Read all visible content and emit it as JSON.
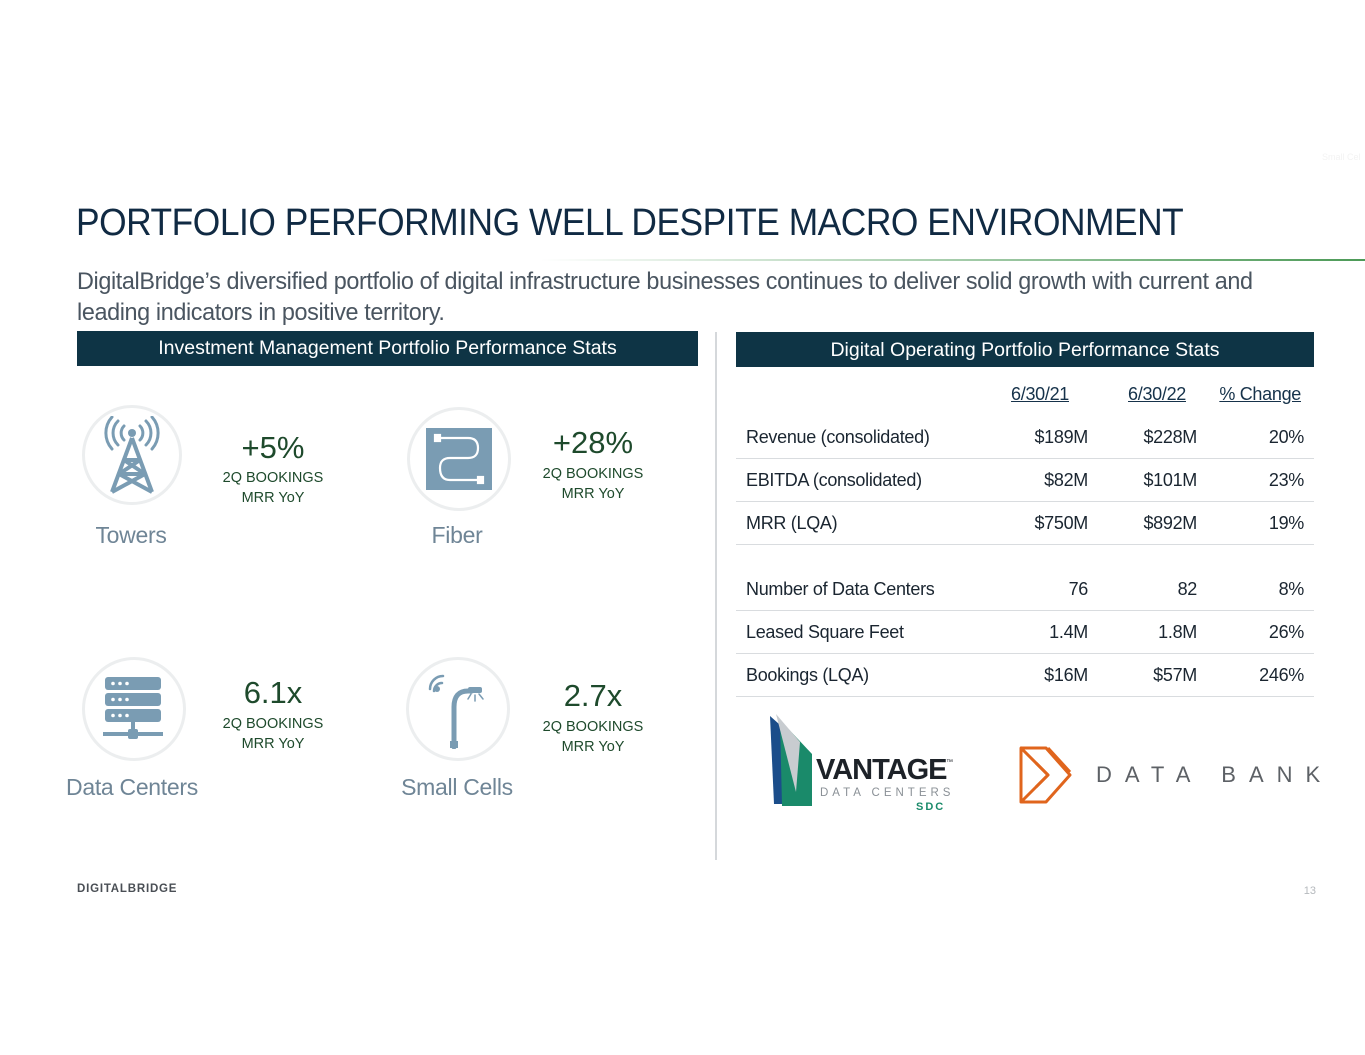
{
  "slide": {
    "ghost_text": "Small Cel",
    "title": "PORTFOLIO PERFORMING WELL DESPITE MACRO ENVIRONMENT",
    "subtitle": "DigitalBridge’s diversified portfolio of digital infrastructure businesses continues to deliver solid growth with current and leading indicators in positive territory.",
    "footer_logo": "DIGITALBRIDGE",
    "page_number": "13"
  },
  "investment_management": {
    "header": "Investment Management Portfolio Performance Stats",
    "sectors": [
      {
        "name": "Towers",
        "icon": "cell-tower-icon",
        "value": "+5%",
        "line1": "2Q BOOKINGS",
        "line2": "MRR YoY"
      },
      {
        "name": "Fiber",
        "icon": "fiber-cable-icon",
        "value": "+28%",
        "line1": "2Q BOOKINGS",
        "line2": "MRR YoY"
      },
      {
        "name": "Data Centers",
        "icon": "server-rack-icon",
        "value": "6.1x",
        "line1": "2Q BOOKINGS",
        "line2": "MRR YoY"
      },
      {
        "name": "Small Cells",
        "icon": "small-cell-pole-icon",
        "value": "2.7x",
        "line1": "2Q BOOKINGS",
        "line2": "MRR YoY"
      }
    ]
  },
  "digital_operating": {
    "header": "Digital Operating Portfolio Performance Stats",
    "columns": [
      "6/30/21",
      "6/30/22",
      "% Change"
    ],
    "rows": [
      {
        "label": "Revenue (consolidated)",
        "a": "$189M",
        "b": "$228M",
        "c": "20%"
      },
      {
        "label": "EBITDA (consolidated)",
        "a": "$82M",
        "b": "$101M",
        "c": "23%"
      },
      {
        "label": "MRR (LQA)",
        "a": "$750M",
        "b": "$892M",
        "c": "19%"
      },
      {
        "label": "Number of Data Centers",
        "a": "76",
        "b": "82",
        "c": "8%"
      },
      {
        "label": "Leased Square Feet",
        "a": "1.4M",
        "b": "1.8M",
        "c": "26%"
      },
      {
        "label": "Bookings (LQA)",
        "a": "$16M",
        "b": "$57M",
        "c": "246%"
      }
    ],
    "logos": {
      "vantage": {
        "name": "VANTAGE",
        "tm": "™",
        "tagline": "DATA CENTERS",
        "sub": "SDC"
      },
      "databank": {
        "name": "DATA BANK"
      }
    }
  },
  "colors": {
    "header_bg": "#0e3445",
    "stat_green": "#1e4a2c",
    "icon_blue": "#7a9cb3",
    "databank_orange": "#e0651d",
    "vantage_green": "#1a8a6a"
  }
}
